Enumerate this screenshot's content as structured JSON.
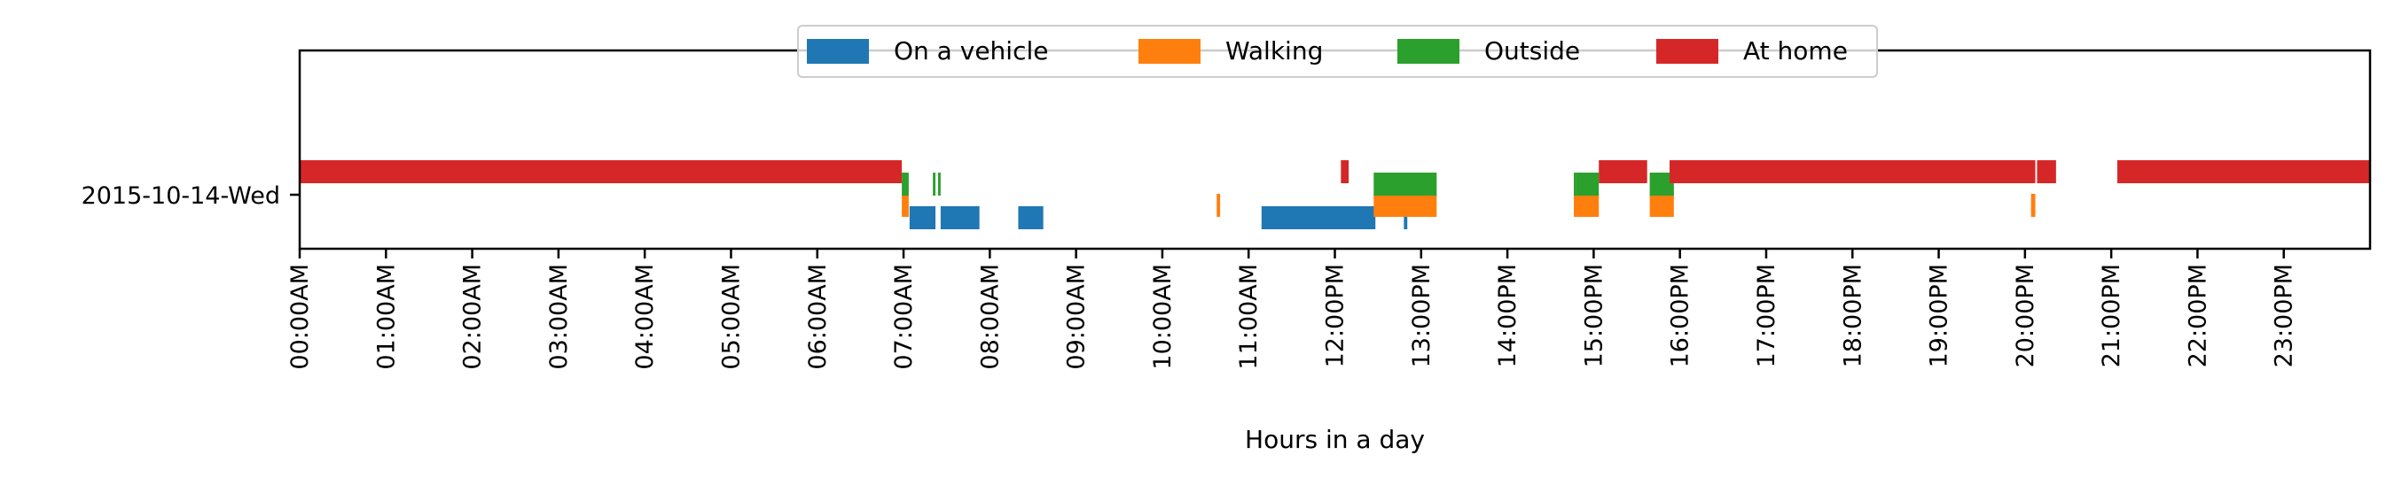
{
  "chart_data": {
    "type": "timeline",
    "xlabel": "Hours in a day",
    "xlim": [
      0,
      24
    ],
    "categories": [
      "2015-10-14-Wed"
    ],
    "x_ticks": [
      "00:00AM",
      "01:00AM",
      "02:00AM",
      "03:00AM",
      "04:00AM",
      "05:00AM",
      "06:00AM",
      "07:00AM",
      "08:00AM",
      "09:00AM",
      "10:00AM",
      "11:00AM",
      "12:00PM",
      "13:00PM",
      "14:00PM",
      "15:00PM",
      "16:00PM",
      "17:00PM",
      "18:00PM",
      "19:00PM",
      "20:00PM",
      "21:00PM",
      "22:00PM",
      "23:00PM"
    ],
    "legend_position": "top-center",
    "series": [
      {
        "name": "On a vehicle",
        "color": "#1f77b4",
        "intervals": [
          [
            7.07,
            7.37
          ],
          [
            7.43,
            7.88
          ],
          [
            8.33,
            8.62
          ],
          [
            11.15,
            12.47
          ],
          [
            12.8,
            12.84
          ]
        ]
      },
      {
        "name": "Walking",
        "color": "#ff7f0e",
        "intervals": [
          [
            6.98,
            7.06
          ],
          [
            10.63,
            10.67
          ],
          [
            12.45,
            13.18
          ],
          [
            14.77,
            15.06
          ],
          [
            15.65,
            15.93
          ],
          [
            20.07,
            20.12
          ]
        ]
      },
      {
        "name": "Outside",
        "color": "#2ca02c",
        "intervals": [
          [
            6.98,
            7.06
          ],
          [
            7.34,
            7.37
          ],
          [
            7.4,
            7.43
          ],
          [
            12.45,
            13.18
          ],
          [
            14.77,
            14.8
          ],
          [
            14.8,
            15.06
          ],
          [
            15.65,
            15.93
          ]
        ]
      },
      {
        "name": "At home",
        "color": "#d62728",
        "intervals": [
          [
            0,
            6.98
          ],
          [
            12.07,
            12.16
          ],
          [
            15.06,
            15.62
          ],
          [
            15.88,
            20.12
          ],
          [
            20.14,
            20.36
          ],
          [
            21.07,
            24
          ]
        ]
      }
    ]
  }
}
